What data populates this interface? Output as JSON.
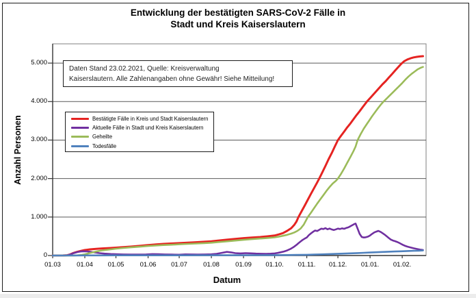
{
  "title": {
    "line1": "Entwicklung der bestätigten SARS-CoV-2 Fälle in",
    "line2": "Stadt und Kreis Kaiserslautern"
  },
  "annotation": {
    "line1": "Daten Stand 23.02.2021, Quelle: Kreisverwaltung",
    "line2": "Kaiserslautern. Alle Zahlenangaben ohne Gewähr! Siehe Mitteilung!"
  },
  "chart_data": {
    "type": "line",
    "title": "Entwicklung der bestätigten SARS-CoV-2 Fälle in Stadt und Kreis Kaiserslautern",
    "xlabel": "Datum",
    "ylabel": "Anzahl Personen",
    "grid": "horizontal",
    "legend_position": "upper-left-inside",
    "x_unit": "days since 01.03.2020",
    "x_range_days": [
      0,
      360
    ],
    "ylim": [
      0,
      5500
    ],
    "x_tick_labels": [
      "01.03",
      "01.04",
      "01.05",
      "01.06",
      "01.07",
      "01.08",
      "01.09",
      "01.10.",
      "01.11.",
      "01.12.",
      "01.01.",
      "01.02."
    ],
    "x_tick_days": [
      0,
      31,
      61,
      92,
      122,
      153,
      184,
      214,
      245,
      275,
      306,
      337
    ],
    "y_tick_labels": [
      "0",
      "1.000",
      "2.000",
      "3.000",
      "4.000",
      "5.000"
    ],
    "y_tick_values": [
      0,
      1000,
      2000,
      3000,
      4000,
      5000
    ],
    "colors": {
      "grid": "#595959",
      "plot_border": "#7f7f7f",
      "axis": "#333333"
    },
    "series": [
      {
        "name": "Bestätigte Fälle in Kreis und Stadt Kaiserslautern",
        "color": "#e52321",
        "width": 3,
        "points": [
          [
            0,
            0
          ],
          [
            10,
            2
          ],
          [
            14,
            8
          ],
          [
            17,
            30
          ],
          [
            20,
            65
          ],
          [
            24,
            100
          ],
          [
            28,
            125
          ],
          [
            31,
            142
          ],
          [
            36,
            160
          ],
          [
            42,
            172
          ],
          [
            48,
            185
          ],
          [
            56,
            196
          ],
          [
            61,
            205
          ],
          [
            68,
            218
          ],
          [
            75,
            232
          ],
          [
            83,
            250
          ],
          [
            92,
            272
          ],
          [
            100,
            290
          ],
          [
            107,
            302
          ],
          [
            115,
            313
          ],
          [
            122,
            322
          ],
          [
            130,
            335
          ],
          [
            138,
            346
          ],
          [
            146,
            357
          ],
          [
            153,
            370
          ],
          [
            160,
            390
          ],
          [
            168,
            412
          ],
          [
            176,
            432
          ],
          [
            184,
            452
          ],
          [
            192,
            466
          ],
          [
            200,
            480
          ],
          [
            207,
            498
          ],
          [
            214,
            520
          ],
          [
            218,
            548
          ],
          [
            222,
            582
          ],
          [
            226,
            640
          ],
          [
            230,
            710
          ],
          [
            233,
            800
          ],
          [
            235,
            880
          ],
          [
            237,
            1000
          ],
          [
            240,
            1150
          ],
          [
            243,
            1300
          ],
          [
            246,
            1450
          ],
          [
            249,
            1600
          ],
          [
            252,
            1750
          ],
          [
            255,
            1900
          ],
          [
            257,
            2000
          ],
          [
            260,
            2160
          ],
          [
            263,
            2330
          ],
          [
            266,
            2500
          ],
          [
            269,
            2660
          ],
          [
            272,
            2830
          ],
          [
            275,
            3000
          ],
          [
            278,
            3110
          ],
          [
            281,
            3220
          ],
          [
            284,
            3330
          ],
          [
            287,
            3430
          ],
          [
            290,
            3540
          ],
          [
            293,
            3650
          ],
          [
            296,
            3750
          ],
          [
            299,
            3860
          ],
          [
            303,
            4000
          ],
          [
            306,
            4090
          ],
          [
            309,
            4180
          ],
          [
            312,
            4270
          ],
          [
            315,
            4360
          ],
          [
            318,
            4450
          ],
          [
            321,
            4530
          ],
          [
            324,
            4620
          ],
          [
            327,
            4710
          ],
          [
            330,
            4800
          ],
          [
            333,
            4890
          ],
          [
            336,
            4980
          ],
          [
            339,
            5050
          ],
          [
            342,
            5095
          ],
          [
            345,
            5125
          ],
          [
            348,
            5148
          ],
          [
            351,
            5162
          ],
          [
            354,
            5172
          ],
          [
            357,
            5180
          ]
        ]
      },
      {
        "name": "Aktuelle Fälle in Stadt und Kreis Kaiserslautern",
        "color": "#7030a0",
        "width": 2.6,
        "points": [
          [
            0,
            0
          ],
          [
            10,
            2
          ],
          [
            14,
            8
          ],
          [
            17,
            28
          ],
          [
            20,
            60
          ],
          [
            24,
            90
          ],
          [
            27,
            105
          ],
          [
            30,
            110
          ],
          [
            33,
            106
          ],
          [
            36,
            100
          ],
          [
            40,
            82
          ],
          [
            45,
            62
          ],
          [
            50,
            50
          ],
          [
            56,
            40
          ],
          [
            61,
            33
          ],
          [
            68,
            28
          ],
          [
            75,
            25
          ],
          [
            83,
            25
          ],
          [
            90,
            28
          ],
          [
            96,
            38
          ],
          [
            102,
            33
          ],
          [
            108,
            28
          ],
          [
            115,
            25
          ],
          [
            122,
            22
          ],
          [
            128,
            30
          ],
          [
            134,
            28
          ],
          [
            140,
            26
          ],
          [
            147,
            28
          ],
          [
            153,
            32
          ],
          [
            158,
            45
          ],
          [
            163,
            70
          ],
          [
            168,
            95
          ],
          [
            172,
            82
          ],
          [
            176,
            62
          ],
          [
            181,
            56
          ],
          [
            186,
            62
          ],
          [
            191,
            57
          ],
          [
            196,
            50
          ],
          [
            201,
            46
          ],
          [
            206,
            44
          ],
          [
            210,
            48
          ],
          [
            214,
            55
          ],
          [
            217,
            68
          ],
          [
            220,
            85
          ],
          [
            223,
            105
          ],
          [
            226,
            132
          ],
          [
            229,
            168
          ],
          [
            232,
            215
          ],
          [
            235,
            275
          ],
          [
            237,
            320
          ],
          [
            239,
            365
          ],
          [
            241,
            405
          ],
          [
            243,
            440
          ],
          [
            245,
            470
          ],
          [
            247,
            530
          ],
          [
            249,
            575
          ],
          [
            251,
            615
          ],
          [
            253,
            650
          ],
          [
            255,
            638
          ],
          [
            257,
            668
          ],
          [
            259,
            698
          ],
          [
            261,
            688
          ],
          [
            263,
            712
          ],
          [
            265,
            682
          ],
          [
            267,
            702
          ],
          [
            269,
            678
          ],
          [
            271,
            662
          ],
          [
            273,
            680
          ],
          [
            275,
            700
          ],
          [
            277,
            688
          ],
          [
            279,
            706
          ],
          [
            281,
            694
          ],
          [
            283,
            716
          ],
          [
            285,
            732
          ],
          [
            287,
            760
          ],
          [
            289,
            790
          ],
          [
            291,
            820
          ],
          [
            292,
            832
          ],
          [
            294,
            700
          ],
          [
            296,
            560
          ],
          [
            298,
            480
          ],
          [
            300,
            468
          ],
          [
            302,
            476
          ],
          [
            304,
            492
          ],
          [
            306,
            522
          ],
          [
            308,
            562
          ],
          [
            310,
            600
          ],
          [
            312,
            622
          ],
          [
            314,
            641
          ],
          [
            316,
            615
          ],
          [
            318,
            582
          ],
          [
            320,
            545
          ],
          [
            322,
            500
          ],
          [
            324,
            455
          ],
          [
            326,
            415
          ],
          [
            328,
            390
          ],
          [
            330,
            374
          ],
          [
            332,
            354
          ],
          [
            334,
            330
          ],
          [
            336,
            300
          ],
          [
            338,
            272
          ],
          [
            340,
            250
          ],
          [
            342,
            232
          ],
          [
            345,
            210
          ],
          [
            348,
            188
          ],
          [
            351,
            170
          ],
          [
            354,
            155
          ],
          [
            357,
            145
          ]
        ]
      },
      {
        "name": "Geheilte",
        "color": "#9bbb59",
        "width": 2.6,
        "points": [
          [
            0,
            0
          ],
          [
            20,
            0
          ],
          [
            24,
            5
          ],
          [
            28,
            15
          ],
          [
            31,
            30
          ],
          [
            36,
            65
          ],
          [
            42,
            105
          ],
          [
            48,
            135
          ],
          [
            56,
            160
          ],
          [
            61,
            178
          ],
          [
            68,
            196
          ],
          [
            75,
            212
          ],
          [
            83,
            228
          ],
          [
            92,
            248
          ],
          [
            100,
            262
          ],
          [
            107,
            272
          ],
          [
            115,
            282
          ],
          [
            122,
            292
          ],
          [
            130,
            302
          ],
          [
            138,
            312
          ],
          [
            146,
            322
          ],
          [
            153,
            333
          ],
          [
            160,
            350
          ],
          [
            168,
            368
          ],
          [
            176,
            388
          ],
          [
            184,
            408
          ],
          [
            192,
            425
          ],
          [
            200,
            442
          ],
          [
            207,
            456
          ],
          [
            214,
            472
          ],
          [
            218,
            490
          ],
          [
            222,
            512
          ],
          [
            226,
            538
          ],
          [
            230,
            570
          ],
          [
            233,
            600
          ],
          [
            236,
            640
          ],
          [
            239,
            700
          ],
          [
            242,
            800
          ],
          [
            244,
            900
          ],
          [
            246,
            1000
          ],
          [
            249,
            1110
          ],
          [
            252,
            1230
          ],
          [
            255,
            1350
          ],
          [
            258,
            1460
          ],
          [
            261,
            1570
          ],
          [
            264,
            1680
          ],
          [
            267,
            1780
          ],
          [
            270,
            1870
          ],
          [
            273,
            1940
          ],
          [
            275,
            2000
          ],
          [
            278,
            2120
          ],
          [
            281,
            2260
          ],
          [
            284,
            2410
          ],
          [
            287,
            2560
          ],
          [
            290,
            2710
          ],
          [
            292,
            2830
          ],
          [
            294,
            3000
          ],
          [
            297,
            3160
          ],
          [
            300,
            3300
          ],
          [
            303,
            3420
          ],
          [
            305,
            3500
          ],
          [
            308,
            3620
          ],
          [
            311,
            3730
          ],
          [
            314,
            3840
          ],
          [
            317,
            3940
          ],
          [
            319,
            4000
          ],
          [
            322,
            4080
          ],
          [
            325,
            4160
          ],
          [
            328,
            4240
          ],
          [
            331,
            4320
          ],
          [
            334,
            4400
          ],
          [
            337,
            4480
          ],
          [
            340,
            4570
          ],
          [
            343,
            4650
          ],
          [
            346,
            4720
          ],
          [
            349,
            4780
          ],
          [
            352,
            4840
          ],
          [
            355,
            4880
          ],
          [
            357,
            4900
          ]
        ]
      },
      {
        "name": "Todesfälle",
        "color": "#4f81bd",
        "width": 2.6,
        "points": [
          [
            0,
            0
          ],
          [
            20,
            1
          ],
          [
            31,
            3
          ],
          [
            45,
            4
          ],
          [
            61,
            5
          ],
          [
            92,
            6
          ],
          [
            122,
            6
          ],
          [
            153,
            7
          ],
          [
            184,
            8
          ],
          [
            200,
            9
          ],
          [
            214,
            11
          ],
          [
            225,
            13
          ],
          [
            235,
            16
          ],
          [
            245,
            20
          ],
          [
            252,
            25
          ],
          [
            259,
            31
          ],
          [
            266,
            37
          ],
          [
            273,
            43
          ],
          [
            280,
            50
          ],
          [
            287,
            57
          ],
          [
            294,
            64
          ],
          [
            300,
            71
          ],
          [
            306,
            79
          ],
          [
            312,
            86
          ],
          [
            318,
            93
          ],
          [
            324,
            99
          ],
          [
            330,
            105
          ],
          [
            336,
            111
          ],
          [
            342,
            117
          ],
          [
            348,
            122
          ],
          [
            353,
            127
          ],
          [
            357,
            131
          ]
        ]
      }
    ]
  }
}
